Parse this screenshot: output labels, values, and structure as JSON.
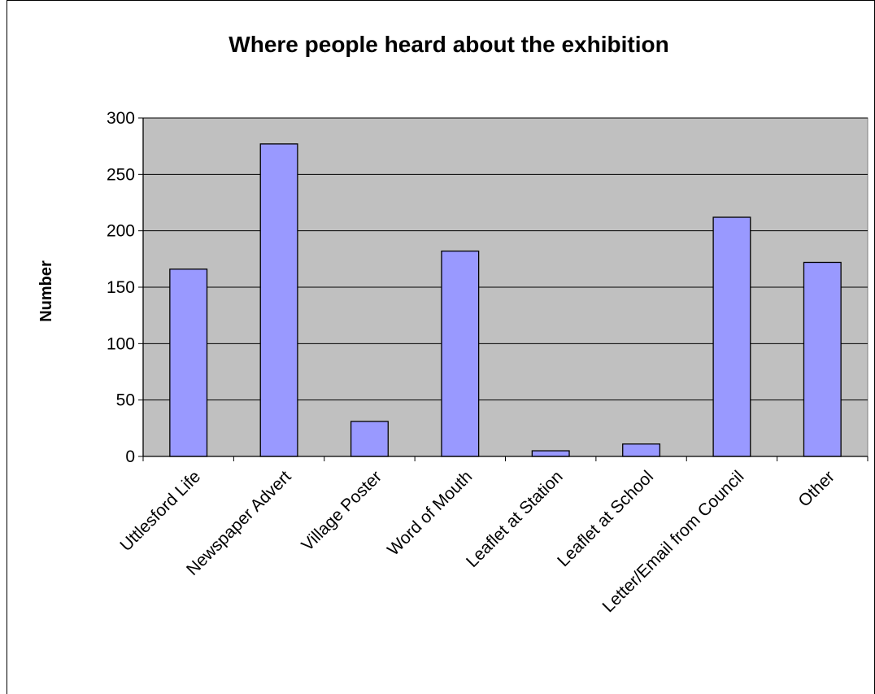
{
  "chart_data": {
    "type": "bar",
    "title": "Where people heard about the exhibition",
    "xlabel": "",
    "ylabel": "Number",
    "ylim": [
      0,
      300
    ],
    "yticks": [
      0,
      50,
      100,
      150,
      200,
      250,
      300
    ],
    "grid": true,
    "legend": "none",
    "categories": [
      "Uttlesford Life",
      "Newspaper Advert",
      "Village Poster",
      "Word of Mouth",
      "Leaflet at Station",
      "Leaflet at School",
      "Letter/Email from Council",
      "Other"
    ],
    "values": [
      166,
      277,
      31,
      182,
      5,
      11,
      212,
      172
    ],
    "colors": {
      "bar": "#9999ff",
      "plot_background": "#c0c0c0",
      "grid": "#000000"
    }
  }
}
